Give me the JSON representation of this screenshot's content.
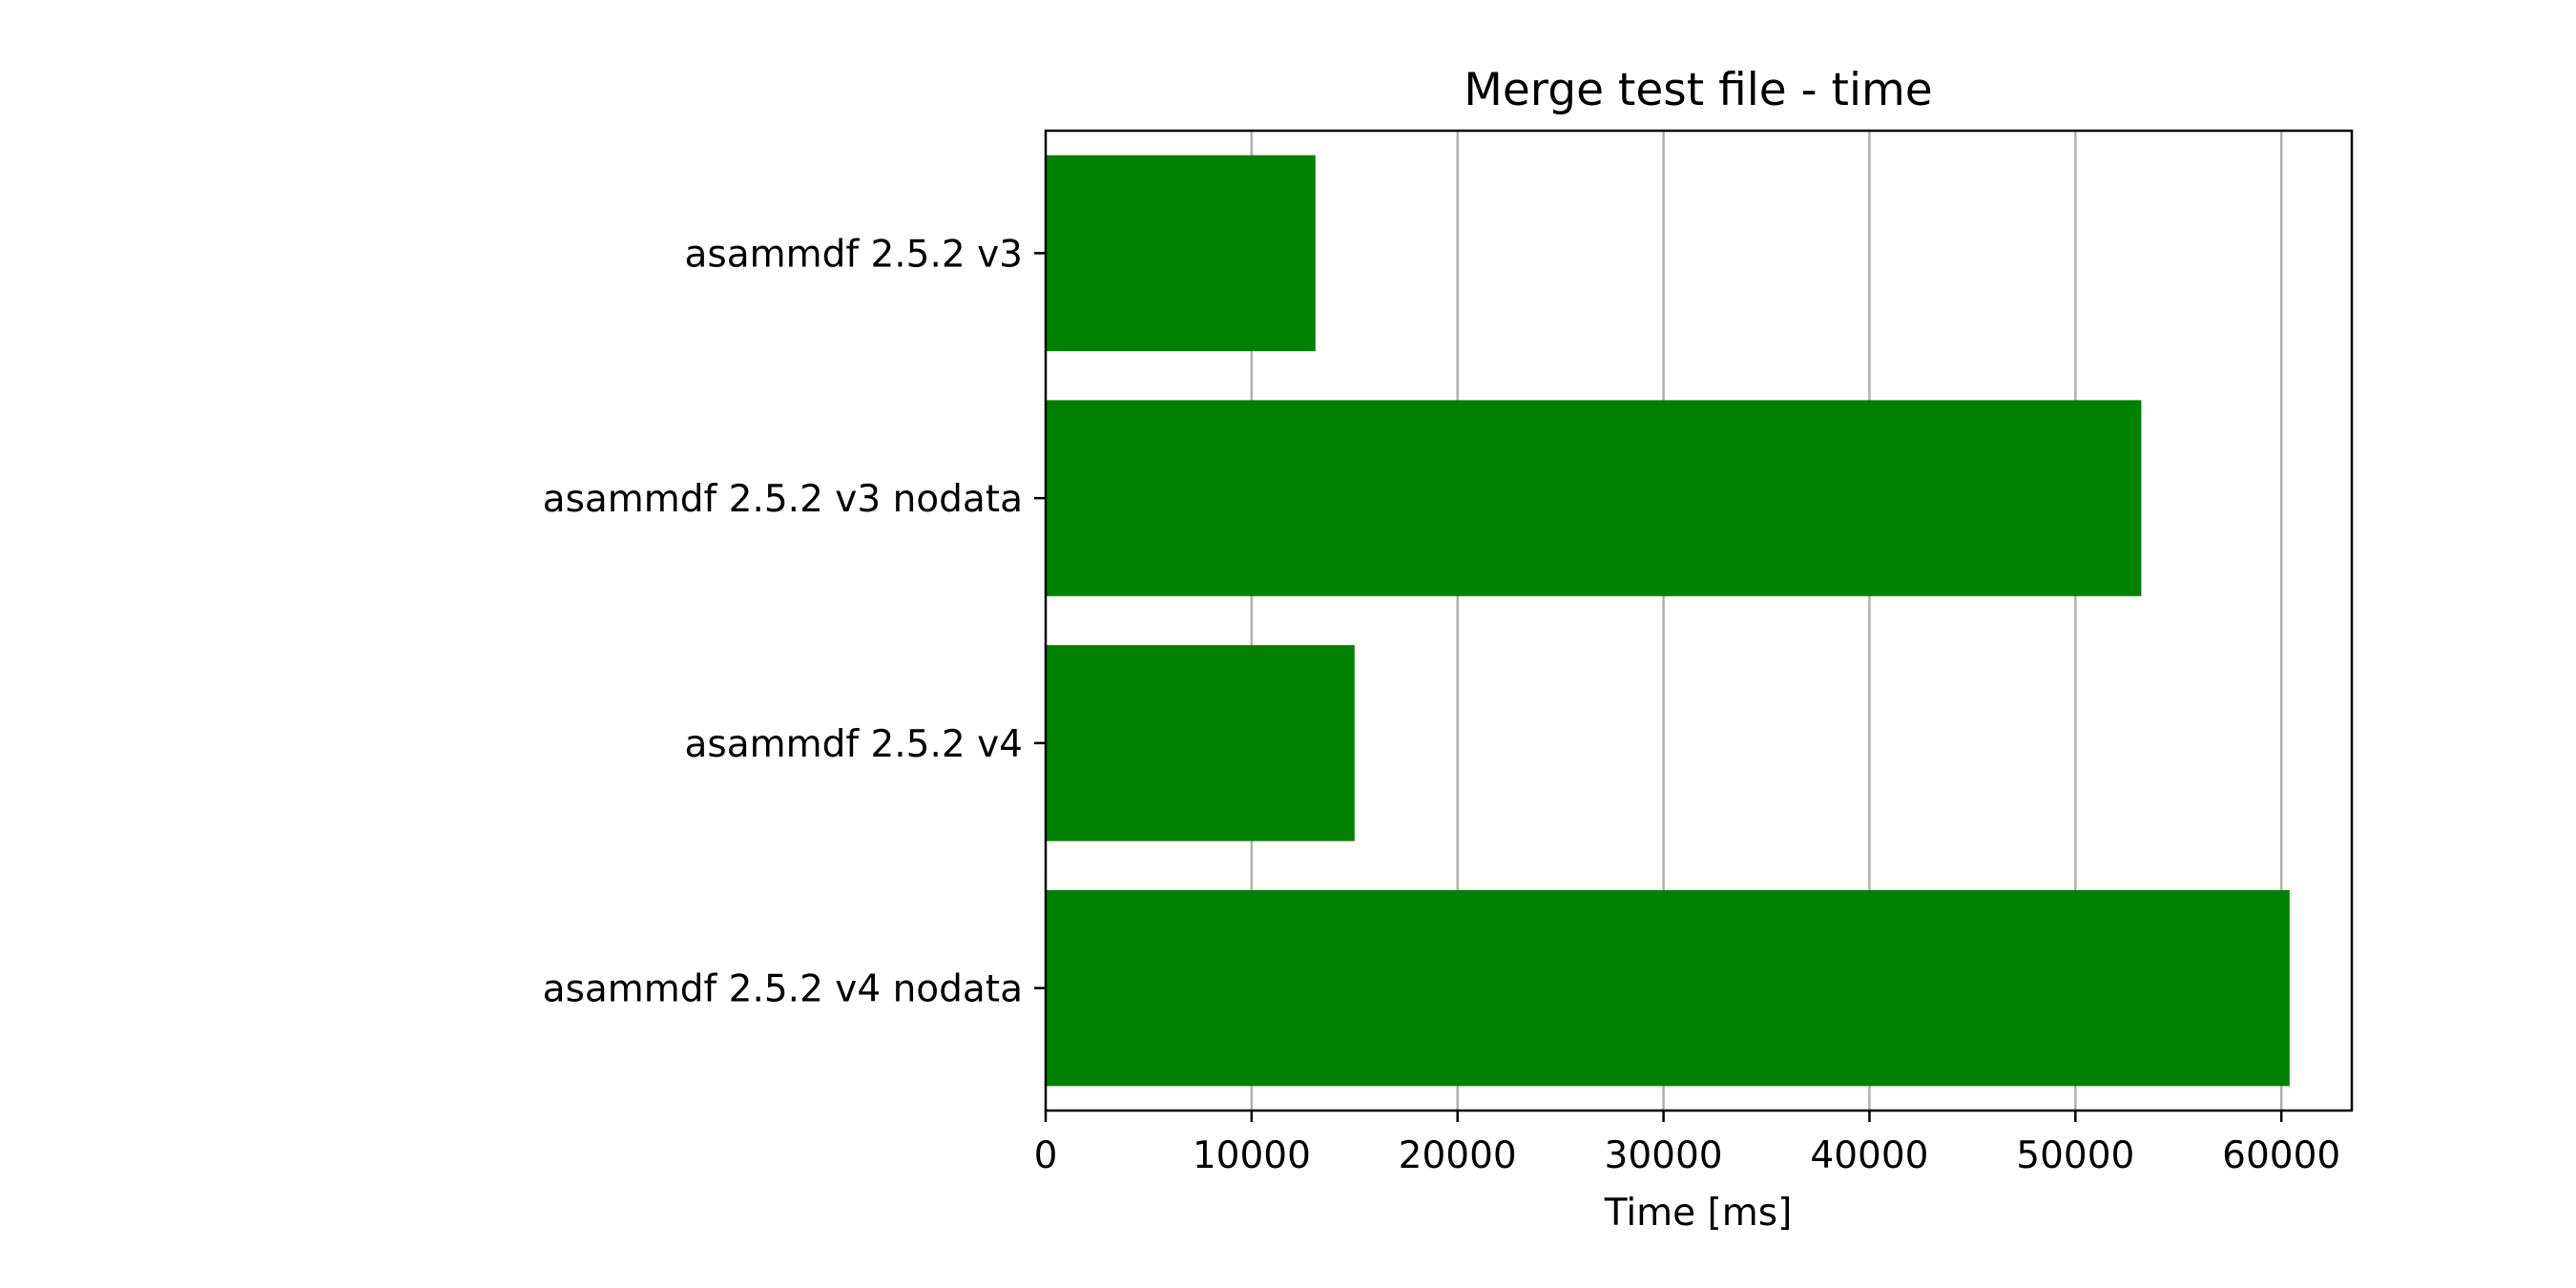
{
  "chart_data": {
    "type": "bar",
    "orientation": "horizontal",
    "title": "Merge test file - time",
    "xlabel": "Time [ms]",
    "ylabel": "",
    "categories": [
      "asammdf 2.5.2 v3",
      "asammdf 2.5.2 v3 nodata",
      "asammdf 2.5.2 v4",
      "asammdf 2.5.2 v4 nodata"
    ],
    "values": [
      13100,
      53200,
      15000,
      60400
    ],
    "xlim": [
      0,
      63420
    ],
    "xticks": [
      0,
      10000,
      20000,
      30000,
      40000,
      50000,
      60000
    ],
    "xtick_labels": [
      "0",
      "10000",
      "20000",
      "30000",
      "40000",
      "50000",
      "60000"
    ],
    "grid": "x",
    "legend": "none",
    "bar_color": "#008000",
    "grid_color": "#b0b0b0"
  }
}
